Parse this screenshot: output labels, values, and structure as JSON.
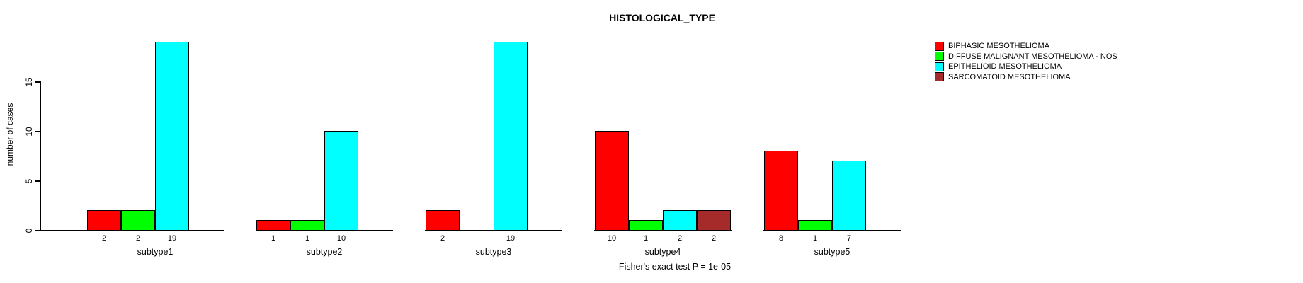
{
  "title": "HISTOLOGICAL_TYPE",
  "ylabel": "number of cases",
  "footnote": "Fisher's exact test P = 1e-05",
  "legend": {
    "position": "right-inside",
    "items": [
      {
        "label": "BIPHASIC MESOTHELIOMA",
        "color": "#FF0000"
      },
      {
        "label": "DIFFUSE MALIGNANT MESOTHELIOMA - NOS",
        "color": "#00FF00"
      },
      {
        "label": "EPITHELIOID MESOTHELIOMA",
        "color": "#00FFFF"
      },
      {
        "label": "SARCOMATOID MESOTHELIOMA",
        "color": "#A52A2A"
      }
    ]
  },
  "chart_data": {
    "type": "bar",
    "title": "HISTOLOGICAL_TYPE",
    "xlabel": "",
    "ylabel": "number of cases",
    "categories": [
      "subtype1",
      "subtype2",
      "subtype3",
      "subtype4",
      "subtype5"
    ],
    "series": [
      {
        "name": "BIPHASIC MESOTHELIOMA",
        "color": "#FF0000",
        "values": [
          2,
          1,
          2,
          10,
          8
        ]
      },
      {
        "name": "DIFFUSE MALIGNANT MESOTHELIOMA - NOS",
        "color": "#00FF00",
        "values": [
          2,
          1,
          0,
          1,
          1
        ]
      },
      {
        "name": "EPITHELIOID MESOTHELIOMA",
        "color": "#00FFFF",
        "values": [
          19,
          10,
          19,
          2,
          7
        ]
      },
      {
        "name": "SARCOMATOID MESOTHELIOMA",
        "color": "#A52A2A",
        "values": [
          0,
          0,
          0,
          2,
          0
        ]
      }
    ],
    "yticks": [
      0,
      5,
      10,
      15
    ],
    "ylim": [
      0,
      19
    ],
    "grid": false,
    "bar_value_labels_shown": true,
    "zero_bars_hidden": true,
    "annotation": "Fisher's exact test P = 1e-05"
  }
}
